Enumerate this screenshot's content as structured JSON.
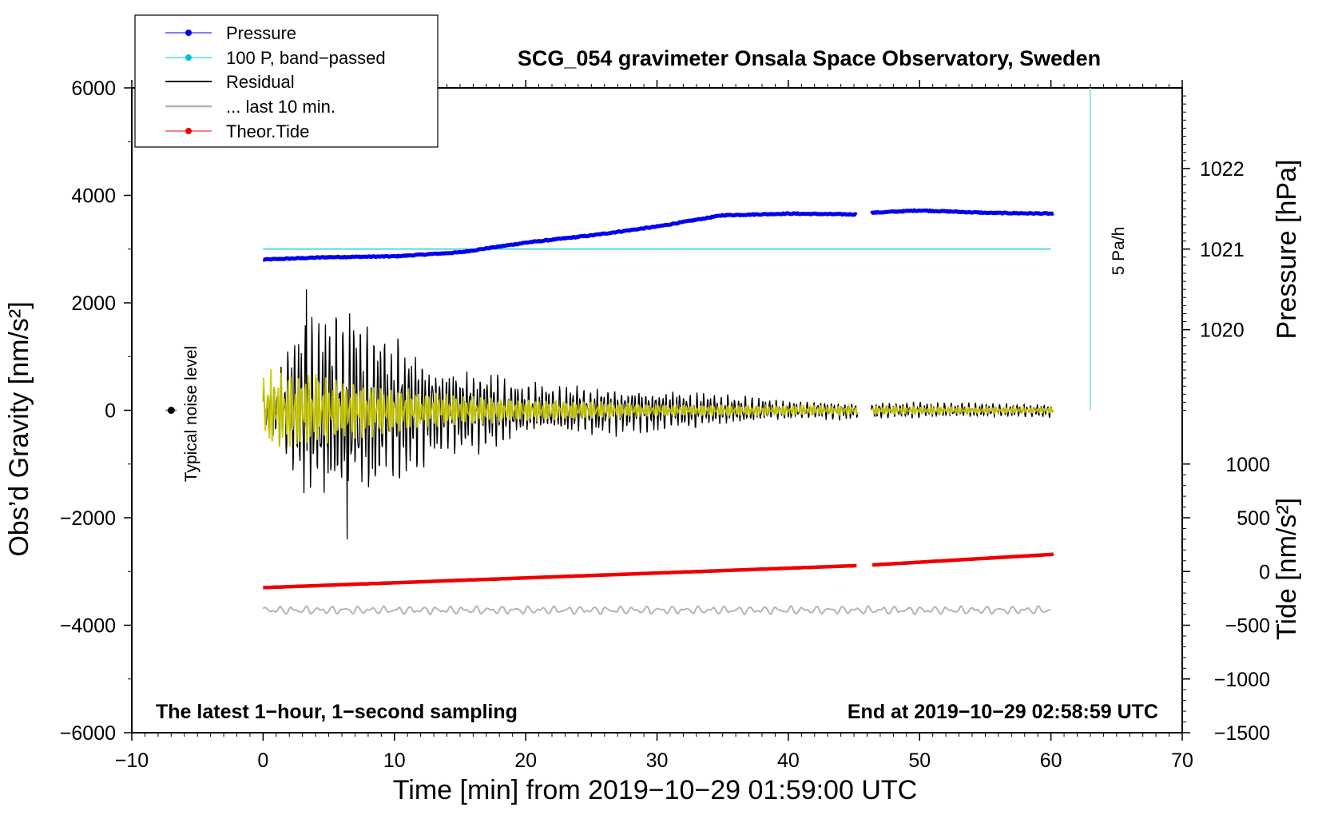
{
  "chart_data": {
    "type": "line",
    "title": "SCG_054 gravimeter Onsala Space Observatory, Sweden",
    "xlabel": "Time [min] from 2019−10−29 01:59:00 UTC",
    "ylabel_left": "Obs’d Gravity [nm/s²]",
    "ylabel_right_top": "Pressure [hPa]",
    "ylabel_right_bottom": "Tide [nm/s²]",
    "xlim": [
      -10,
      70
    ],
    "ylim_left": [
      -6000,
      6000
    ],
    "x_ticks": [
      -10,
      0,
      10,
      20,
      30,
      40,
      50,
      60,
      70
    ],
    "x_tick_labels": [
      "−10",
      "0",
      "10",
      "20",
      "30",
      "40",
      "50",
      "60",
      "70"
    ],
    "y_left_ticks": [
      6000,
      4000,
      2000,
      0,
      -2000,
      -4000,
      -6000
    ],
    "y_left_tick_labels": [
      "6000",
      "4000",
      "2000",
      "0",
      "−2000",
      "−4000",
      "−6000"
    ],
    "pressure_axis": {
      "ticks": [
        1022,
        1021,
        1020
      ],
      "tick_labels": [
        "1022",
        "1021",
        "1020"
      ],
      "gravity_at_1021": 3000,
      "gravity_per_hPa": 1500
    },
    "tide_axis": {
      "ticks": [
        1000,
        500,
        0,
        -500,
        -1000,
        -1500
      ],
      "tick_labels": [
        "1000",
        "500",
        "0",
        "−500",
        "−1000",
        "−1500"
      ],
      "gravity_at_zero": -3000,
      "gravity_per_unit": 2
    },
    "legend": {
      "position": "top-left",
      "entries": [
        {
          "label": "Pressure",
          "color": "#0000ee",
          "marker": true
        },
        {
          "label": "100 P, band−passed",
          "color": "#00c8c8",
          "marker": true
        },
        {
          "label": "Residual",
          "color": "#000000",
          "marker": false
        },
        {
          "label": "... last 10 min.",
          "color": "#b4b4b4",
          "marker": false
        },
        {
          "label": "Theor.Tide",
          "color": "#ee0000",
          "marker": true
        }
      ]
    },
    "series": [
      {
        "name": "Pressure",
        "color": "#0000ee",
        "unit": "hPa",
        "gap_minutes": [
          45.3,
          46.3
        ],
        "x": [
          0,
          5,
          10,
          15,
          20,
          25,
          30,
          35,
          40,
          45.3,
          46.3,
          50,
          55,
          60.2
        ],
        "values": [
          1020.87,
          1020.9,
          1020.91,
          1020.96,
          1021.08,
          1021.17,
          1021.28,
          1021.42,
          1021.44,
          1021.43,
          1021.45,
          1021.48,
          1021.45,
          1021.44
        ]
      },
      {
        "name": "100 P, band−passed",
        "color": "#00c8c8",
        "unit": "nm/s²",
        "x": [
          0,
          60
        ],
        "values": [
          3000,
          3000
        ]
      },
      {
        "name": "Residual",
        "color": "#000000",
        "unit": "nm/s²",
        "x_range": [
          0,
          60.2
        ],
        "gap_minutes": [
          45.3,
          46.3
        ],
        "envelope_peaks": [
          {
            "x": 0.5,
            "amp": 550
          },
          {
            "x": 3.3,
            "amp": 2250
          },
          {
            "x": 6.5,
            "amp": 2300
          },
          {
            "x": 10.5,
            "amp": 1650
          },
          {
            "x": 13,
            "amp": 1100
          },
          {
            "x": 17.5,
            "amp": 900
          },
          {
            "x": 20,
            "amp": 600
          },
          {
            "x": 30,
            "amp": 500
          },
          {
            "x": 40,
            "amp": 220
          },
          {
            "x": 60,
            "amp": 150
          }
        ],
        "extremes": [
          {
            "x": 3.3,
            "value": 2250
          },
          {
            "x": 6.4,
            "value": 2300
          },
          {
            "x": 6.4,
            "value": -2400
          }
        ]
      },
      {
        "name": "100 P, band−passed (overlay)",
        "color": "#cccc00",
        "unit": "nm/s²",
        "x_range": [
          0,
          60.2
        ],
        "gap_minutes": [
          45.3,
          46.3
        ],
        "envelope_peaks": [
          {
            "x": 3.3,
            "amp": 800
          },
          {
            "x": 6.5,
            "amp": 600
          },
          {
            "x": 15,
            "amp": 300
          },
          {
            "x": 30,
            "amp": 120
          },
          {
            "x": 60,
            "amp": 50
          }
        ]
      },
      {
        "name": "... last 10 min.",
        "color": "#b4b4b4",
        "unit": "nm/s²",
        "x_range": [
          0,
          60
        ],
        "center": -3720,
        "amp": 80
      },
      {
        "name": "Theor.Tide",
        "color": "#ee0000",
        "unit": "nm/s²",
        "gap_minutes": [
          45.3,
          46.3
        ],
        "x": [
          0,
          45.3,
          46.3,
          60.2
        ],
        "values": [
          -150,
          55,
          60,
          160
        ]
      }
    ],
    "annotations": {
      "noise_label": "Typical noise level",
      "noise_point": {
        "x": -7,
        "value": 0
      },
      "rate_label": "5 Pa/h",
      "rate_bar": {
        "x": 63,
        "from": 0,
        "to": 6000
      },
      "footer_left": "The latest 1−hour, 1−second sampling",
      "footer_right": "End at 2019−10−29 02:58:59 UTC"
    }
  }
}
